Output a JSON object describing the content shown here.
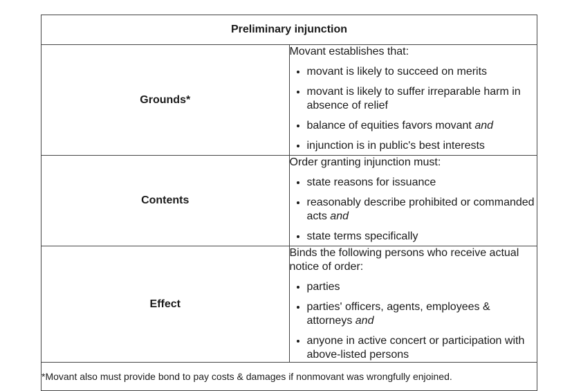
{
  "table": {
    "title": "Preliminary injunction",
    "rows": [
      {
        "label": "Grounds*",
        "intro": "Movant establishes that:",
        "items": [
          {
            "text": "movant is likely to succeed on merits",
            "conj": ""
          },
          {
            "text": "movant is likely to suffer irreparable harm in absence of relief",
            "conj": ""
          },
          {
            "text": "balance of equities favors movant ",
            "conj": "and"
          },
          {
            "text": "injunction is in public's best interests",
            "conj": ""
          }
        ]
      },
      {
        "label": "Contents",
        "intro": "Order granting injunction must:",
        "items": [
          {
            "text": "state reasons for issuance",
            "conj": ""
          },
          {
            "text": "reasonably describe prohibited or commanded acts ",
            "conj": "and"
          },
          {
            "text": "state terms specifically",
            "conj": ""
          }
        ]
      },
      {
        "label": "Effect",
        "intro": "Binds the following persons who receive actual notice of order:",
        "items": [
          {
            "text": "parties",
            "conj": ""
          },
          {
            "text": "parties' officers, agents, employees & attorneys ",
            "conj": "and"
          },
          {
            "text": "anyone in active concert or participation with above-listed persons",
            "conj": ""
          }
        ]
      }
    ],
    "footnote": "*Movant also must provide bond to pay costs & damages if nonmovant was wrongfully enjoined."
  }
}
